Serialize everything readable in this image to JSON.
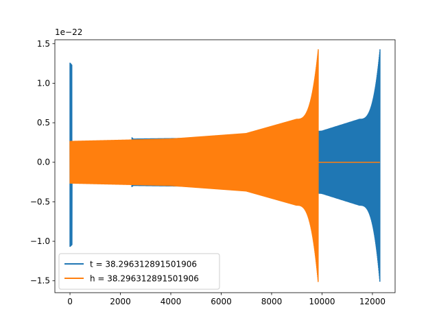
{
  "chart_data": {
    "type": "line",
    "title": "",
    "xlabel": "",
    "ylabel": "",
    "y_offset_label": "1e−22",
    "xlim": [
      -600,
      12900
    ],
    "ylim": [
      -1.65,
      1.55
    ],
    "grid": false,
    "legend_placement": "lower-left",
    "x_ticks": [
      {
        "value": 0,
        "label": "0"
      },
      {
        "value": 2000,
        "label": "2000"
      },
      {
        "value": 4000,
        "label": "4000"
      },
      {
        "value": 6000,
        "label": "6000"
      },
      {
        "value": 8000,
        "label": "8000"
      },
      {
        "value": 10000,
        "label": "10000"
      },
      {
        "value": 12000,
        "label": "12000"
      }
    ],
    "y_ticks": [
      {
        "value": 1.5,
        "label": "1.5"
      },
      {
        "value": 1.0,
        "label": "1.0"
      },
      {
        "value": 0.5,
        "label": "0.5"
      },
      {
        "value": 0.0,
        "label": "0.0"
      },
      {
        "value": -0.5,
        "label": "−0.5"
      },
      {
        "value": -1.0,
        "label": "−1.0"
      },
      {
        "value": -1.5,
        "label": "−1.5"
      }
    ],
    "series": [
      {
        "name": "t = 38.296312891501906",
        "color": "#1f77b4",
        "description_points": [
          {
            "x": 0,
            "y_max": 1.26,
            "y_min": -1.07
          },
          {
            "x": 2500,
            "y_max": 0.3,
            "y_min": -0.3
          },
          {
            "x": 5000,
            "y_max": 0.31,
            "y_min": -0.31
          },
          {
            "x": 8000,
            "y_max": 0.37,
            "y_min": -0.37
          },
          {
            "x": 10000,
            "y_max": 0.4,
            "y_min": -0.4
          },
          {
            "x": 11500,
            "y_max": 0.55,
            "y_min": -0.55
          },
          {
            "x": 12300,
            "y_max": 1.43,
            "y_min": -1.53
          }
        ],
        "x_start": 0,
        "x_end": 12300
      },
      {
        "name": "h = 38.296312891501906",
        "color": "#ff7f0e",
        "description_points": [
          {
            "x": 0,
            "y_max": 0.27,
            "y_min": -0.27
          },
          {
            "x": 4000,
            "y_max": 0.3,
            "y_min": -0.3
          },
          {
            "x": 7000,
            "y_max": 0.37,
            "y_min": -0.37
          },
          {
            "x": 9000,
            "y_max": 0.55,
            "y_min": -0.55
          },
          {
            "x": 9850,
            "y_max": 1.43,
            "y_min": -1.53
          }
        ],
        "x_start": 0,
        "x_end": 9850
      }
    ]
  }
}
